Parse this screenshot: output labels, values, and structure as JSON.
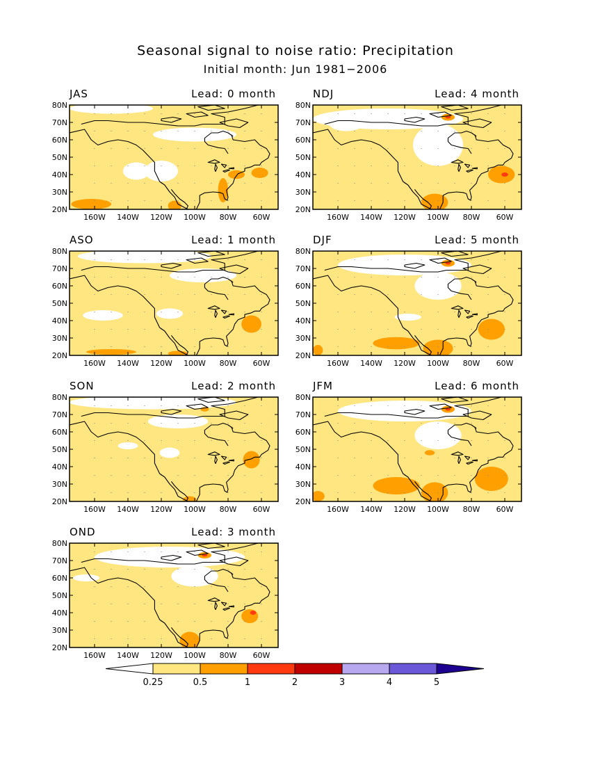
{
  "title": "Seasonal signal to noise ratio: Precipitation",
  "subtitle": "Initial month: Jun 1981−2006",
  "lat_labels": [
    "80N",
    "70N",
    "60N",
    "50N",
    "40N",
    "30N",
    "20N"
  ],
  "lon_labels": [
    "160W",
    "140W",
    "120W",
    "100W",
    "80W",
    "60W"
  ],
  "panels": [
    {
      "season": "JAS",
      "lead": "Lead: 0 month"
    },
    {
      "season": "ASO",
      "lead": "Lead: 1 month"
    },
    {
      "season": "SON",
      "lead": "Lead: 2 month"
    },
    {
      "season": "OND",
      "lead": "Lead: 3 month"
    },
    {
      "season": "NDJ",
      "lead": "Lead: 4 month"
    },
    {
      "season": "DJF",
      "lead": "Lead: 5 month"
    },
    {
      "season": "JFM",
      "lead": "Lead: 6 month"
    }
  ],
  "colorbar": {
    "tick_labels": [
      "0.25",
      "0.5",
      "1",
      "2",
      "3",
      "4",
      "5"
    ],
    "colors": [
      "#ffffff",
      "#ffe680",
      "#ffa000",
      "#ff3a10",
      "#c00000",
      "#b8a8f0",
      "#6a58d8",
      "#1e0090"
    ]
  }
}
